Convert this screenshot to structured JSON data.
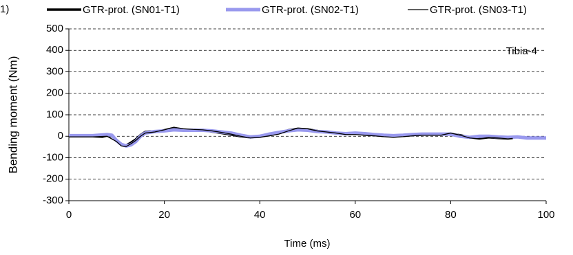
{
  "chart_data": {
    "type": "line",
    "legend_prefix": "1)",
    "annotation": "Tibia-4",
    "xlabel": "Time (ms)",
    "ylabel": "Bending moment (Nm)",
    "xlim": [
      0,
      100
    ],
    "xticks": [
      0,
      20,
      40,
      60,
      80,
      100
    ],
    "ylim": [
      -300,
      500
    ],
    "yticks": [
      -300,
      -200,
      -100,
      0,
      100,
      200,
      300,
      400,
      500
    ],
    "grid": true,
    "series": [
      {
        "name": "GTR-prot. (SN01-T1)",
        "color": "#000000",
        "line_width": 3.5,
        "x": [
          0,
          5,
          7,
          8,
          9,
          10,
          11,
          12,
          13,
          14,
          15,
          16,
          17,
          18,
          20,
          22,
          24,
          26,
          28,
          30,
          32,
          34,
          36,
          38,
          40,
          42,
          44,
          46,
          48,
          50,
          52,
          54,
          56,
          58,
          60,
          62,
          64,
          66,
          68,
          70,
          72,
          74,
          76,
          78,
          80,
          82,
          84,
          86,
          88,
          90,
          92,
          93
        ],
        "values": [
          0,
          0,
          -2,
          3,
          0,
          -20,
          -40,
          -43,
          -30,
          -15,
          5,
          20,
          22,
          20,
          28,
          38,
          30,
          30,
          30,
          22,
          15,
          8,
          0,
          -5,
          0,
          5,
          15,
          28,
          35,
          32,
          25,
          18,
          15,
          10,
          12,
          8,
          5,
          2,
          0,
          2,
          5,
          8,
          8,
          8,
          10,
          5,
          -5,
          -10,
          -5,
          -8,
          -10,
          -8
        ]
      },
      {
        "name": "GTR-prot. (SN02-T1)",
        "color": "#9999ee",
        "line_width": 5,
        "x": [
          0,
          5,
          8,
          9,
          10,
          11,
          12,
          13,
          14,
          15,
          16,
          18,
          20,
          22,
          24,
          26,
          28,
          30,
          32,
          34,
          36,
          38,
          40,
          42,
          44,
          46,
          48,
          50,
          52,
          54,
          56,
          58,
          60,
          62,
          64,
          66,
          68,
          70,
          72,
          74,
          76,
          78,
          80,
          82,
          84,
          86,
          88,
          90,
          92,
          94,
          96,
          98,
          100
        ],
        "values": [
          3,
          3,
          8,
          5,
          -20,
          -38,
          -45,
          -40,
          -25,
          0,
          15,
          22,
          25,
          30,
          28,
          28,
          28,
          25,
          20,
          15,
          5,
          -3,
          0,
          10,
          18,
          25,
          30,
          28,
          22,
          20,
          15,
          12,
          15,
          12,
          8,
          5,
          3,
          5,
          8,
          10,
          10,
          10,
          10,
          0,
          -5,
          0,
          0,
          -3,
          -5,
          -3,
          -8,
          -8,
          -8
        ]
      },
      {
        "name": "GTR-prot. (SN03-T1)",
        "color": "#000000",
        "line_width": 1.3,
        "x": [
          0,
          5,
          8,
          10,
          11,
          12,
          13,
          14,
          15,
          16,
          18,
          20,
          22,
          24,
          26,
          28,
          30,
          32,
          34,
          36,
          38,
          40,
          42,
          44,
          46,
          48,
          50,
          52,
          54,
          56,
          58,
          60,
          62,
          64,
          66,
          68,
          70,
          72,
          74,
          76,
          78,
          80,
          82,
          84,
          86,
          88,
          90,
          92,
          93
        ],
        "values": [
          -3,
          -3,
          0,
          -25,
          -45,
          -48,
          -35,
          -20,
          0,
          15,
          20,
          30,
          42,
          35,
          32,
          30,
          25,
          18,
          10,
          0,
          -8,
          -5,
          2,
          10,
          25,
          38,
          35,
          25,
          20,
          15,
          8,
          8,
          5,
          2,
          -2,
          -5,
          -2,
          2,
          5,
          5,
          5,
          15,
          5,
          -8,
          -12,
          -5,
          -8,
          -12,
          -10
        ]
      }
    ]
  }
}
